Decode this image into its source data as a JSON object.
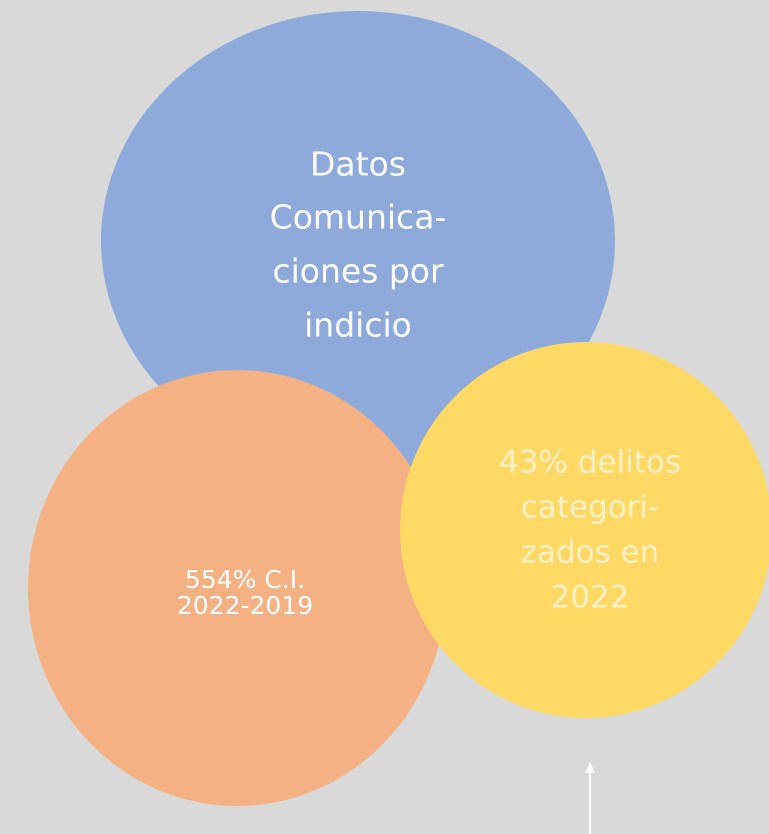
{
  "nodes": [
    {
      "lines": [
        "Datos",
        "Comunica-",
        "ciones por",
        "indicio"
      ]
    },
    {
      "lines": [
        "554% C.I.",
        "2022-2019"
      ]
    },
    {
      "lines": [
        "43% delitos",
        "categori-",
        "zados en",
        "2022"
      ]
    }
  ]
}
